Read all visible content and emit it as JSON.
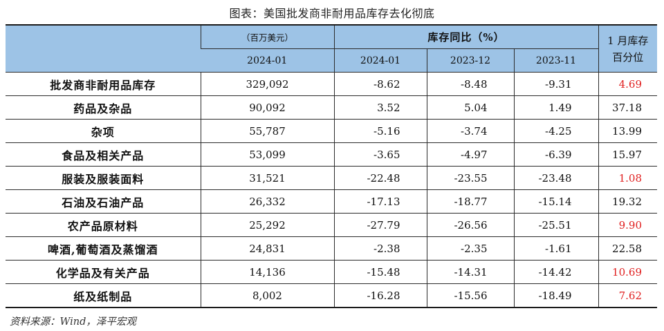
{
  "title": "图表：美国批发商非耐用品库存去化彻底",
  "header": {
    "col1_unit": "（百万美元）",
    "col1_date": "2024-01",
    "yoy_label": "库存同比（%）",
    "yoy_dates": [
      "2024-01",
      "2023-12",
      "2023-11"
    ],
    "pctl_line1": "1 月库存",
    "pctl_line2": "百分位"
  },
  "rows": [
    {
      "name": "批发商非耐用品库存",
      "value": "329,092",
      "yoy": [
        "-8.62",
        "-8.48",
        "-9.31"
      ],
      "pctl": "4.69",
      "highlight": true
    },
    {
      "name": "药品及杂品",
      "value": "90,092",
      "yoy": [
        "3.52",
        "5.04",
        "1.49"
      ],
      "pctl": "37.18",
      "highlight": false
    },
    {
      "name": "杂项",
      "value": "55,787",
      "yoy": [
        "-5.16",
        "-3.74",
        "-4.25"
      ],
      "pctl": "13.99",
      "highlight": false
    },
    {
      "name": "食品及相关产品",
      "value": "53,099",
      "yoy": [
        "-3.65",
        "-4.97",
        "-6.39"
      ],
      "pctl": "15.97",
      "highlight": false
    },
    {
      "name": "服装及服装面料",
      "value": "31,521",
      "yoy": [
        "-22.48",
        "-23.55",
        "-23.48"
      ],
      "pctl": "1.08",
      "highlight": true
    },
    {
      "name": "石油及石油产品",
      "value": "26,332",
      "yoy": [
        "-17.13",
        "-18.77",
        "-15.14"
      ],
      "pctl": "19.32",
      "highlight": false
    },
    {
      "name": "农产品原材料",
      "value": "25,292",
      "yoy": [
        "-27.79",
        "-26.56",
        "-25.51"
      ],
      "pctl": "9.90",
      "highlight": true
    },
    {
      "name": "啤酒,葡萄酒及蒸馏酒",
      "value": "24,831",
      "yoy": [
        "-2.38",
        "-2.35",
        "-1.61"
      ],
      "pctl": "22.58",
      "highlight": false
    },
    {
      "name": "化学品及有关产品",
      "value": "14,136",
      "yoy": [
        "-15.48",
        "-14.31",
        "-14.42"
      ],
      "pctl": "10.69",
      "highlight": true
    },
    {
      "name": "纸及纸制品",
      "value": "8,002",
      "yoy": [
        "-16.28",
        "-15.56",
        "-18.49"
      ],
      "pctl": "7.62",
      "highlight": true
    }
  ],
  "source": "资料来源：Wind，泽平宏观",
  "colors": {
    "header_bg": "#9dc3e6",
    "highlight": "#e02020"
  }
}
